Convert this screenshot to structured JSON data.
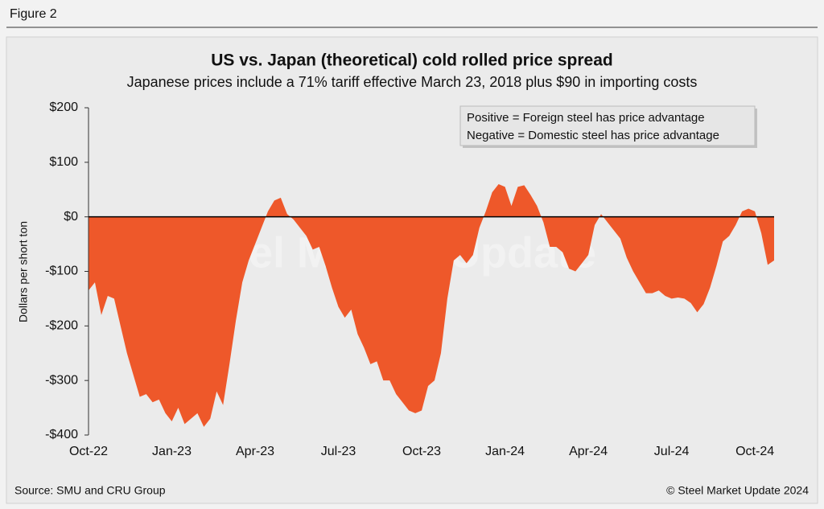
{
  "figure_label": "Figure 2",
  "source": "Source: SMU and CRU Group",
  "copyright": "© Steel Market Update 2024",
  "chart_data": {
    "type": "area",
    "title": "US vs. Japan (theoretical) cold rolled price spread",
    "subtitle": "Japanese prices include a 71% tariff effective March 23, 2018 plus $90 in importing costs",
    "y_label": "Dollars per short ton",
    "annotations": [
      "Positive = Foreign steel has price advantage",
      "Negative = Domestic steel has price advantage"
    ],
    "watermark": "Steel Market Update",
    "color": "#ee582a",
    "categories": [
      "Oct-22",
      null,
      null,
      null,
      null,
      null,
      null,
      null,
      null,
      null,
      null,
      null,
      null,
      "Jan-23",
      null,
      null,
      null,
      null,
      null,
      null,
      null,
      null,
      null,
      null,
      null,
      null,
      "Apr-23",
      null,
      null,
      null,
      null,
      null,
      null,
      null,
      null,
      null,
      null,
      null,
      null,
      "Jul-23",
      null,
      null,
      null,
      null,
      null,
      null,
      null,
      null,
      null,
      null,
      null,
      null,
      "Oct-23",
      null,
      null,
      null,
      null,
      null,
      null,
      null,
      null,
      null,
      null,
      null,
      null,
      "Jan-24",
      null,
      null,
      null,
      null,
      null,
      null,
      null,
      null,
      null,
      null,
      null,
      null,
      "Apr-24",
      null,
      null,
      null,
      null,
      null,
      null,
      null,
      null,
      null,
      null,
      null,
      null,
      "Jul-24",
      null,
      null,
      null,
      null,
      null,
      null,
      null,
      null,
      null,
      null,
      null,
      null,
      "Oct-24",
      null,
      null,
      null
    ],
    "values": [
      -135,
      -120,
      -180,
      -145,
      -150,
      -200,
      -250,
      -290,
      -330,
      -325,
      -340,
      -335,
      -360,
      -375,
      -350,
      -380,
      -370,
      -360,
      -385,
      -370,
      -320,
      -345,
      -270,
      -190,
      -120,
      -80,
      -50,
      -20,
      10,
      30,
      35,
      5,
      -5,
      -20,
      -35,
      -60,
      -55,
      -90,
      -130,
      -165,
      -185,
      -170,
      -215,
      -240,
      -270,
      -265,
      -300,
      -300,
      -325,
      -340,
      -355,
      -360,
      -355,
      -310,
      -300,
      -250,
      -150,
      -80,
      -70,
      -85,
      -70,
      -20,
      10,
      45,
      60,
      55,
      20,
      55,
      58,
      40,
      20,
      -10,
      -55,
      -55,
      -65,
      -95,
      -100,
      -85,
      -70,
      -15,
      5,
      -10,
      -25,
      -40,
      -75,
      -100,
      -120,
      -140,
      -140,
      -135,
      -145,
      -150,
      -148,
      -150,
      -158,
      -175,
      -160,
      -130,
      -90,
      -45,
      -35,
      -15,
      10,
      15,
      10,
      -30,
      -88,
      -80
    ],
    "ylim": [
      -400,
      200
    ],
    "yticks": [
      {
        "value": -400,
        "label": "-$400"
      },
      {
        "value": -300,
        "label": "-$300"
      },
      {
        "value": -200,
        "label": "-$200"
      },
      {
        "value": -100,
        "label": "-$100"
      },
      {
        "value": 0,
        "label": "$0"
      },
      {
        "value": 100,
        "label": "$100"
      },
      {
        "value": 200,
        "label": "$200"
      }
    ],
    "zero_line": true
  }
}
